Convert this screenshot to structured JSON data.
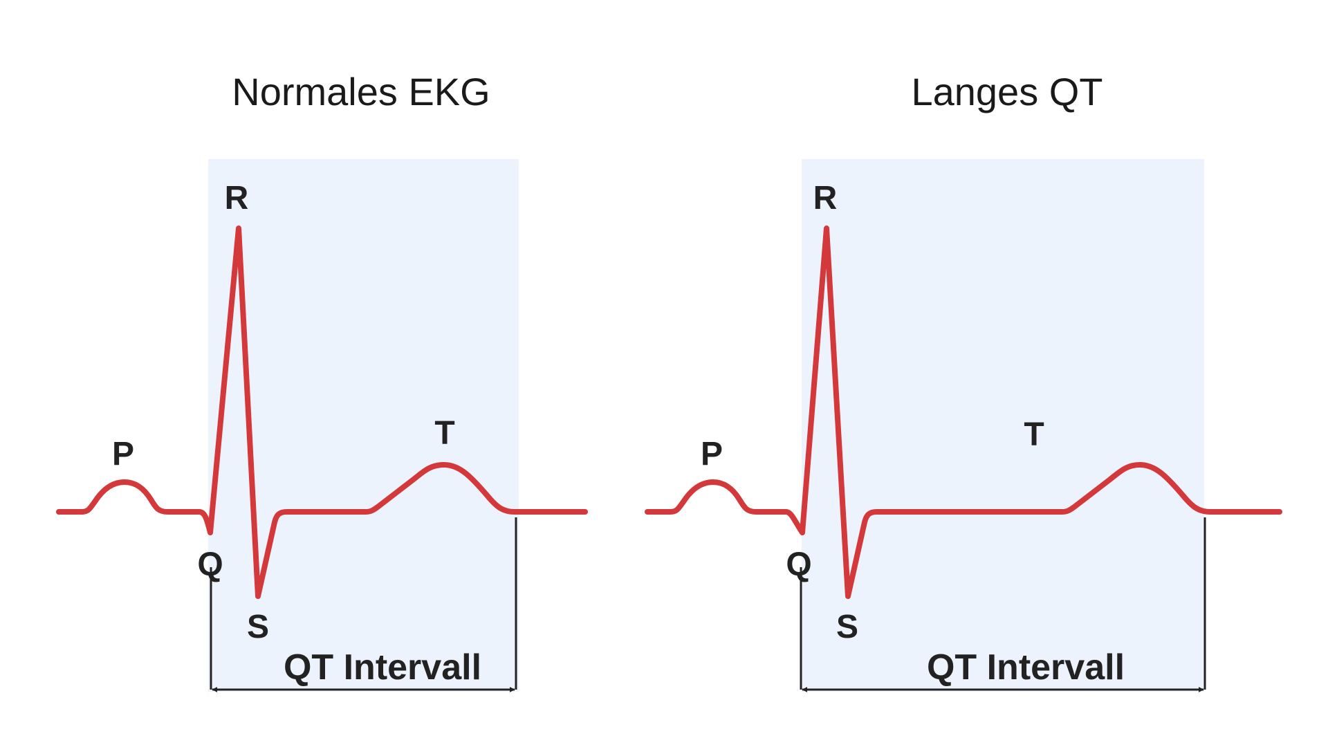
{
  "panels": [
    {
      "id": "normal",
      "title": "Normales EKG",
      "interval_label": "QT Intervall",
      "wave_labels": {
        "P": "P",
        "Q": "Q",
        "R": "R",
        "S": "S",
        "T": "T"
      },
      "qt_relative_length": "normal"
    },
    {
      "id": "long",
      "title": "Langes QT",
      "interval_label": "QT Intervall",
      "wave_labels": {
        "P": "P",
        "Q": "Q",
        "R": "R",
        "S": "S",
        "T": "T"
      },
      "qt_relative_length": "long"
    }
  ],
  "colors": {
    "trace": "#d3383a",
    "qt_highlight": "#edf3fc",
    "text": "#222222",
    "background": "#ffffff"
  }
}
